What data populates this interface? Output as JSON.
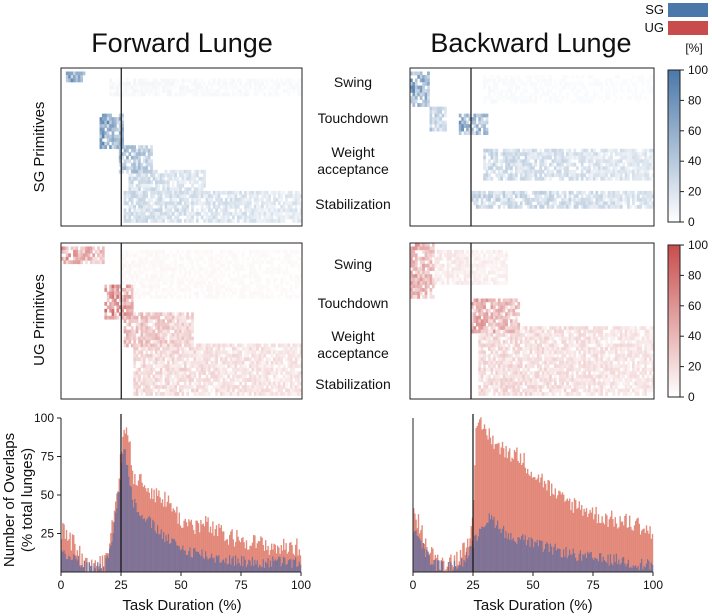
{
  "chart_data": {
    "type": "heatmap",
    "columns": [
      "Forward Lunge",
      "Backward Lunge"
    ],
    "rows": [
      "SG Primitives",
      "UG Primitives"
    ],
    "phases": [
      "Swing",
      "Touchdown",
      "Weight acceptance",
      "Stabilization"
    ],
    "phase_lines": {
      "weight_1": "Weight",
      "weight_2": "acceptance"
    },
    "legend": [
      {
        "label": "SG",
        "color": "#4a78a8"
      },
      {
        "label": "UG",
        "color": "#c94c4c"
      }
    ],
    "colorbar": {
      "unit": "[%]",
      "ticks": [
        "0",
        "20",
        "40",
        "60",
        "80",
        "100"
      ],
      "range": [
        0,
        100
      ]
    },
    "event_marker_pct": 25,
    "heatmap_rows": 45,
    "heatmap_cols": 100,
    "panels": {
      "sg_forward": {
        "blocks": [
          {
            "r0": 1,
            "r1": 4,
            "c0": 2,
            "c1": 10,
            "v": 75
          },
          {
            "r0": 13,
            "r1": 23,
            "c0": 16,
            "c1": 26,
            "v": 80
          },
          {
            "r0": 22,
            "r1": 30,
            "c0": 24,
            "c1": 38,
            "v": 55
          },
          {
            "r0": 29,
            "r1": 36,
            "c0": 28,
            "c1": 60,
            "v": 30
          },
          {
            "r0": 35,
            "r1": 44,
            "c0": 26,
            "c1": 100,
            "v": 28
          },
          {
            "r0": 3,
            "r1": 8,
            "c0": 20,
            "c1": 100,
            "v": 6
          }
        ]
      },
      "sg_backward": {
        "blocks": [
          {
            "r0": 1,
            "r1": 11,
            "c0": 0,
            "c1": 8,
            "v": 78
          },
          {
            "r0": 11,
            "r1": 18,
            "c0": 8,
            "c1": 15,
            "v": 40
          },
          {
            "r0": 13,
            "r1": 19,
            "c0": 20,
            "c1": 32,
            "v": 70
          },
          {
            "r0": 23,
            "r1": 32,
            "c0": 30,
            "c1": 100,
            "v": 30
          },
          {
            "r0": 35,
            "r1": 40,
            "c0": 25,
            "c1": 100,
            "v": 35
          },
          {
            "r0": 2,
            "r1": 10,
            "c0": 30,
            "c1": 100,
            "v": 4
          }
        ]
      },
      "ug_forward": {
        "blocks": [
          {
            "r0": 1,
            "r1": 6,
            "c0": 0,
            "c1": 18,
            "v": 60
          },
          {
            "r0": 12,
            "r1": 22,
            "c0": 18,
            "c1": 30,
            "v": 75
          },
          {
            "r0": 20,
            "r1": 30,
            "c0": 26,
            "c1": 55,
            "v": 40
          },
          {
            "r0": 29,
            "r1": 44,
            "c0": 30,
            "c1": 100,
            "v": 25
          },
          {
            "r0": 2,
            "r1": 16,
            "c0": 25,
            "c1": 100,
            "v": 5
          }
        ]
      },
      "ug_backward": {
        "blocks": [
          {
            "r0": 0,
            "r1": 16,
            "c0": 0,
            "c1": 10,
            "v": 55
          },
          {
            "r0": 2,
            "r1": 12,
            "c0": 10,
            "c1": 40,
            "v": 14
          },
          {
            "r0": 16,
            "r1": 26,
            "c0": 25,
            "c1": 45,
            "v": 55
          },
          {
            "r0": 24,
            "r1": 44,
            "c0": 28,
            "c1": 100,
            "v": 25
          }
        ]
      }
    },
    "bar_panels": [
      {
        "name": "Forward Lunge",
        "ylim": [
          0,
          100
        ],
        "xlim": [
          0,
          100
        ],
        "ug_keys": [
          [
            0,
            27
          ],
          [
            5,
            18
          ],
          [
            10,
            5
          ],
          [
            15,
            4
          ],
          [
            18,
            6
          ],
          [
            21,
            30
          ],
          [
            24,
            62
          ],
          [
            26,
            98
          ],
          [
            28,
            85
          ],
          [
            30,
            62
          ],
          [
            35,
            55
          ],
          [
            40,
            50
          ],
          [
            45,
            45
          ],
          [
            50,
            33
          ],
          [
            55,
            30
          ],
          [
            60,
            31
          ],
          [
            65,
            26
          ],
          [
            70,
            22
          ],
          [
            75,
            22
          ],
          [
            80,
            19
          ],
          [
            85,
            17
          ],
          [
            90,
            16
          ],
          [
            95,
            16
          ],
          [
            100,
            16
          ]
        ],
        "sg_keys": [
          [
            0,
            13
          ],
          [
            5,
            10
          ],
          [
            10,
            3
          ],
          [
            15,
            3
          ],
          [
            18,
            4
          ],
          [
            21,
            22
          ],
          [
            24,
            55
          ],
          [
            26,
            82
          ],
          [
            28,
            62
          ],
          [
            30,
            45
          ],
          [
            35,
            35
          ],
          [
            40,
            27
          ],
          [
            45,
            20
          ],
          [
            50,
            15
          ],
          [
            55,
            13
          ],
          [
            60,
            11
          ],
          [
            65,
            9
          ],
          [
            70,
            8
          ],
          [
            75,
            7
          ],
          [
            80,
            6
          ],
          [
            85,
            6
          ],
          [
            90,
            7
          ],
          [
            95,
            6
          ],
          [
            100,
            6
          ]
        ]
      },
      {
        "name": "Backward Lunge",
        "ylim": [
          0,
          100
        ],
        "xlim": [
          0,
          100
        ],
        "ug_keys": [
          [
            0,
            40
          ],
          [
            3,
            28
          ],
          [
            6,
            14
          ],
          [
            9,
            8
          ],
          [
            12,
            6
          ],
          [
            15,
            7
          ],
          [
            18,
            9
          ],
          [
            21,
            15
          ],
          [
            23,
            22
          ],
          [
            25,
            45
          ],
          [
            26,
            88
          ],
          [
            28,
            95
          ],
          [
            32,
            88
          ],
          [
            36,
            80
          ],
          [
            40,
            78
          ],
          [
            45,
            74
          ],
          [
            50,
            64
          ],
          [
            55,
            58
          ],
          [
            60,
            48
          ],
          [
            65,
            45
          ],
          [
            70,
            42
          ],
          [
            75,
            38
          ],
          [
            80,
            35
          ],
          [
            85,
            33
          ],
          [
            90,
            32
          ],
          [
            95,
            30
          ],
          [
            100,
            24
          ]
        ],
        "sg_keys": [
          [
            0,
            28
          ],
          [
            3,
            18
          ],
          [
            6,
            10
          ],
          [
            9,
            5
          ],
          [
            12,
            3
          ],
          [
            15,
            3
          ],
          [
            18,
            4
          ],
          [
            21,
            8
          ],
          [
            23,
            12
          ],
          [
            25,
            18
          ],
          [
            26,
            22
          ],
          [
            28,
            30
          ],
          [
            32,
            35
          ],
          [
            36,
            30
          ],
          [
            40,
            22
          ],
          [
            45,
            22
          ],
          [
            50,
            18
          ],
          [
            55,
            16
          ],
          [
            60,
            14
          ],
          [
            65,
            12
          ],
          [
            70,
            10
          ],
          [
            75,
            9
          ],
          [
            80,
            8
          ],
          [
            85,
            8
          ],
          [
            90,
            6
          ],
          [
            95,
            5
          ],
          [
            100,
            5
          ]
        ]
      }
    ],
    "ylabel": "Number of Overlaps\n(% total lunges)",
    "ylabel_line1": "Number of Overlaps",
    "ylabel_line2": "(% total lunges)",
    "xlabel": "Task Duration (%)",
    "y_ticks": [
      "25",
      "50",
      "75",
      "100"
    ],
    "x_ticks": [
      "0",
      "25",
      "50",
      "75",
      "100"
    ]
  }
}
